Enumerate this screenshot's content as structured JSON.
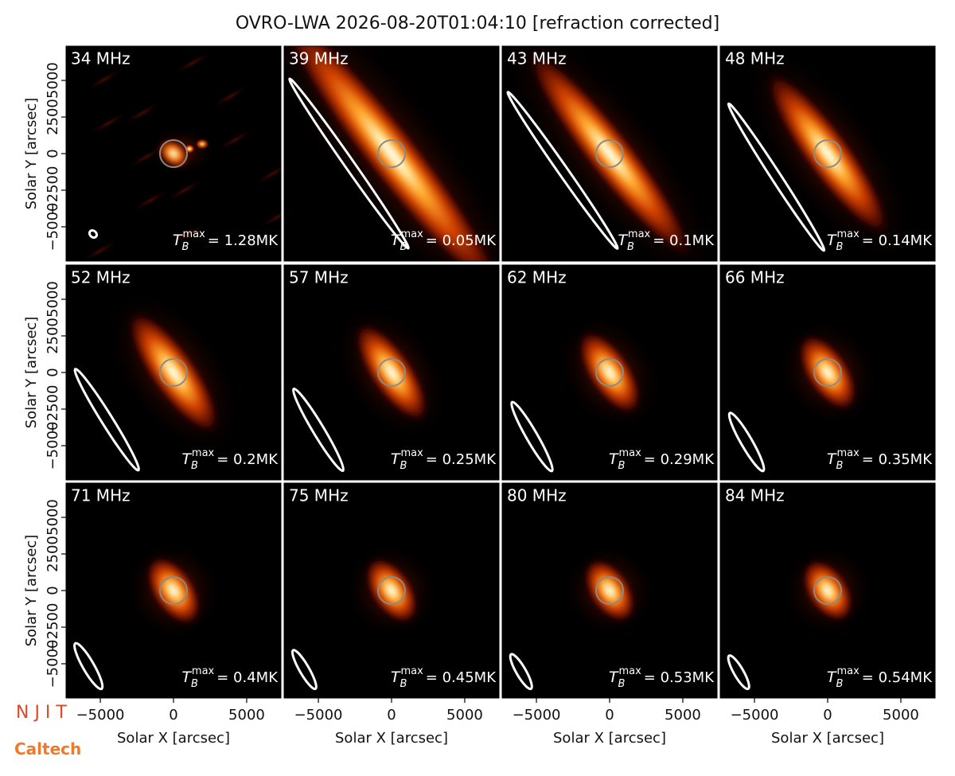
{
  "chart_data": {
    "type": "image_grid",
    "title": "OVRO-LWA 2026-08-20T01:04:10 [refraction corrected]",
    "x_label": "Solar X [arcsec]",
    "y_label": "Solar Y [arcsec]",
    "xlim": [
      -7340,
      7340
    ],
    "ylim": [
      -7340,
      7340
    ],
    "xticks": [
      {
        "value": -5000,
        "label": "−5000"
      },
      0,
      5000
    ],
    "yticks": [
      {
        "value": -5000,
        "label": "−5000"
      },
      {
        "value": -2500,
        "label": "−2500"
      },
      0,
      2500,
      5000
    ],
    "tb_symbol": "T",
    "tb_sub": "B",
    "tb_sup": "max",
    "panels": [
      {
        "label": "34 MHz",
        "tmax": "= 1.28MK"
      },
      {
        "label": "39 MHz",
        "tmax": "= 0.05MK"
      },
      {
        "label": "43 MHz",
        "tmax": "= 0.1MK"
      },
      {
        "label": "48 MHz",
        "tmax": "= 0.14MK"
      },
      {
        "label": "52 MHz",
        "tmax": "= 0.2MK"
      },
      {
        "label": "57 MHz",
        "tmax": "= 0.25MK"
      },
      {
        "label": "62 MHz",
        "tmax": "= 0.29MK"
      },
      {
        "label": "66 MHz",
        "tmax": "= 0.35MK"
      },
      {
        "label": "71 MHz",
        "tmax": "= 0.4MK"
      },
      {
        "label": "75 MHz",
        "tmax": "= 0.45MK"
      },
      {
        "label": "80 MHz",
        "tmax": "= 0.53MK"
      },
      {
        "label": "84 MHz",
        "tmax": "= 0.54MK"
      }
    ]
  },
  "logos": [
    "N J I T",
    "Caltech"
  ]
}
